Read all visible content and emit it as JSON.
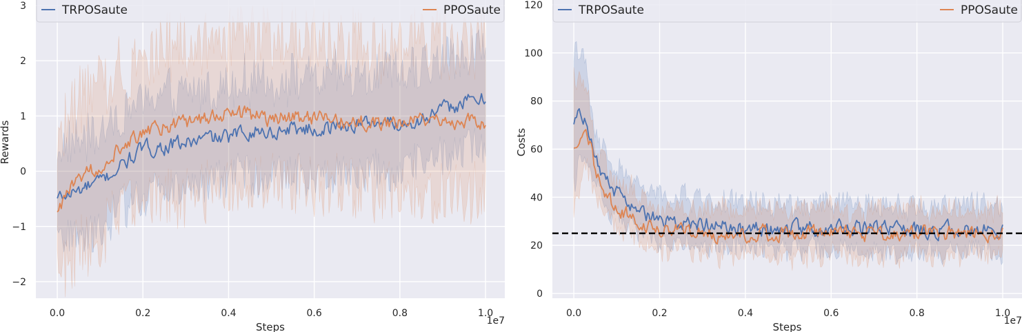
{
  "chart_data": [
    {
      "type": "line",
      "xlabel": "Steps",
      "ylabel": "Rewards",
      "x_offset_label": "1e7",
      "xlim": [
        -0.05,
        1.045
      ],
      "ylim": [
        -2.3,
        3.1
      ],
      "xticks": [
        0.0,
        0.2,
        0.4,
        0.6,
        0.8,
        1.0
      ],
      "xtick_labels": [
        "0.0",
        "0.2",
        "0.4",
        "0.6",
        "0.8",
        "1.0"
      ],
      "yticks": [
        -2,
        -1,
        0,
        1,
        2,
        3
      ],
      "ytick_labels": [
        "−2",
        "−1",
        "0",
        "1",
        "2",
        "3"
      ],
      "grid": true,
      "legend": {
        "placement": "top",
        "entries": [
          "TRPOSaute",
          "PPOSaute"
        ]
      },
      "series": [
        {
          "name": "TRPOSaute",
          "color": "#4c72b0",
          "x": [
            0.0,
            0.05,
            0.1,
            0.15,
            0.2,
            0.25,
            0.3,
            0.35,
            0.4,
            0.45,
            0.5,
            0.55,
            0.6,
            0.65,
            0.7,
            0.75,
            0.8,
            0.85,
            0.9,
            0.95,
            1.0
          ],
          "mean": [
            -0.5,
            -0.35,
            -0.2,
            0.1,
            0.4,
            0.45,
            0.5,
            0.6,
            0.6,
            0.75,
            0.7,
            0.8,
            0.75,
            0.8,
            0.85,
            0.9,
            0.85,
            0.95,
            1.1,
            1.25,
            1.3
          ],
          "band": 0.9
        },
        {
          "name": "PPOSaute",
          "color": "#dd8452",
          "x": [
            0.0,
            0.05,
            0.1,
            0.15,
            0.2,
            0.25,
            0.3,
            0.35,
            0.4,
            0.45,
            0.5,
            0.55,
            0.6,
            0.65,
            0.7,
            0.75,
            0.8,
            0.85,
            0.9,
            0.95,
            1.0
          ],
          "mean": [
            -0.75,
            -0.1,
            0.1,
            0.5,
            0.7,
            0.8,
            0.85,
            0.95,
            1.05,
            1.0,
            0.95,
            1.0,
            0.95,
            0.9,
            0.9,
            0.85,
            0.9,
            0.95,
            0.95,
            0.9,
            0.9
          ],
          "band": 1.4
        }
      ]
    },
    {
      "type": "line",
      "xlabel": "Steps",
      "ylabel": "Costs",
      "x_offset_label": "1e7",
      "xlim": [
        -0.05,
        1.045
      ],
      "ylim": [
        -2,
        122
      ],
      "xticks": [
        0.0,
        0.2,
        0.4,
        0.6,
        0.8,
        1.0
      ],
      "xtick_labels": [
        "0.0",
        "0.2",
        "0.4",
        "0.6",
        "0.8",
        "1.0"
      ],
      "yticks": [
        0,
        20,
        40,
        60,
        80,
        100,
        120
      ],
      "ytick_labels": [
        "0",
        "20",
        "40",
        "60",
        "80",
        "100",
        "120"
      ],
      "grid": true,
      "threshold": 25,
      "legend": {
        "placement": "top",
        "entries": [
          "TRPOSaute",
          "PPOSaute"
        ]
      },
      "series": [
        {
          "name": "TRPOSaute",
          "color": "#4c72b0",
          "x": [
            0.0,
            0.01,
            0.03,
            0.05,
            0.08,
            0.1,
            0.15,
            0.2,
            0.25,
            0.3,
            0.35,
            0.4,
            0.5,
            0.6,
            0.7,
            0.8,
            0.9,
            1.0
          ],
          "mean": [
            70,
            78,
            72,
            55,
            45,
            42,
            35,
            30,
            30,
            29,
            28,
            27,
            27,
            27,
            27,
            26,
            27,
            26
          ],
          "band": 10
        },
        {
          "name": "PPOSaute",
          "color": "#dd8452",
          "x": [
            0.0,
            0.01,
            0.03,
            0.05,
            0.08,
            0.1,
            0.15,
            0.2,
            0.25,
            0.3,
            0.35,
            0.4,
            0.5,
            0.6,
            0.7,
            0.8,
            0.9,
            1.0
          ],
          "mean": [
            60,
            65,
            70,
            50,
            40,
            36,
            30,
            27,
            26,
            25,
            25,
            25,
            25,
            25,
            25,
            25,
            25,
            25
          ],
          "band": 10
        }
      ]
    }
  ]
}
